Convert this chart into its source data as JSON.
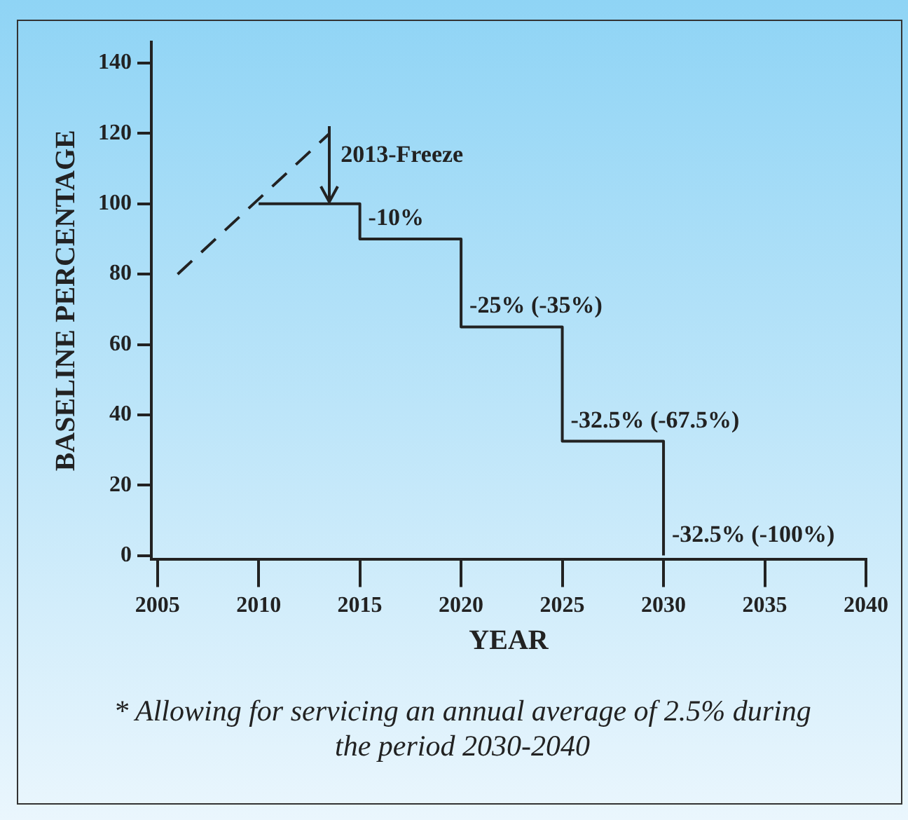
{
  "chart_data": {
    "type": "step",
    "xlabel": "YEAR",
    "ylabel": "BASELINE PERCENTAGE",
    "xlim": [
      2004.7,
      2040
    ],
    "xticks": [
      2005,
      2010,
      2015,
      2020,
      2025,
      2030,
      2035,
      2040
    ],
    "ylim": [
      -1,
      146
    ],
    "yticks": [
      0,
      20,
      40,
      60,
      80,
      100,
      120,
      140
    ],
    "series": [
      {
        "color": "#222222",
        "x": [
          2010,
          2015,
          2020,
          2025,
          2030
        ],
        "values": [
          100,
          90,
          65,
          32.5,
          0
        ]
      },
      {
        "type": "line",
        "line_style": "dashed",
        "color": "#222222",
        "x": [
          2006,
          2013.5
        ],
        "values": [
          80,
          120
        ]
      }
    ],
    "annotations": [
      {
        "text": "2013-Freeze",
        "x": 2013.5,
        "y": 100
      },
      {
        "text": "-10%",
        "x": 2015,
        "y": 90
      },
      {
        "text": "-25% (-35%)",
        "x": 2020,
        "y": 65
      },
      {
        "text": "-32.5% (-67.5%)",
        "x": 2025,
        "y": 32.5
      },
      {
        "text": "-32.5% (-100%)",
        "x": 2030,
        "y": 0
      },
      "* Allowing for servicing an annual average of 2.5% during the period 2030-2040"
    ],
    "grid": false,
    "legend": false,
    "marker": "none"
  }
}
